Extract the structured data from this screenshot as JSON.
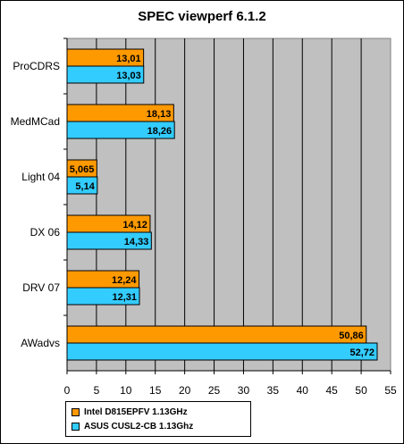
{
  "chart_data": {
    "type": "bar",
    "orientation": "horizontal",
    "title": "SPEC viewperf 6.1.2",
    "categories": [
      "ProCDRS",
      "MedMCad",
      "Light 04",
      "DX 06",
      "DRV 07",
      "AWadvs"
    ],
    "series": [
      {
        "name": "Intel D815EPFV 1.13GHz",
        "values": [
          13.01,
          18.13,
          5.065,
          14.12,
          12.24,
          50.86
        ],
        "labels": [
          "13,01",
          "18,13",
          "5,065",
          "14,12",
          "12,24",
          "50,86"
        ],
        "color": "#ff9900"
      },
      {
        "name": "ASUS CUSL2-CB 1.13Ghz",
        "values": [
          13.03,
          18.26,
          5.14,
          14.33,
          12.31,
          52.72
        ],
        "labels": [
          "13,03",
          "18,26",
          "5,14",
          "14,33",
          "12,31",
          "52,72"
        ],
        "color": "#33ccff"
      }
    ],
    "xlim": [
      0,
      55
    ],
    "xticks": [
      "0",
      "5",
      "10",
      "15",
      "20",
      "25",
      "30",
      "35",
      "40",
      "45",
      "50",
      "55"
    ],
    "grid": true,
    "legend_position": "bottom-left",
    "plot_background": "#c0c0c0"
  }
}
